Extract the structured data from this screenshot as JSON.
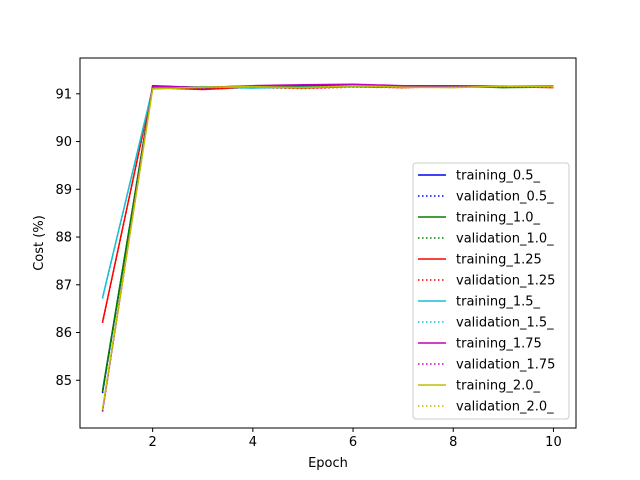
{
  "chart_data": {
    "type": "line",
    "title": "",
    "xlabel": "Epoch",
    "ylabel": "Cost (%)",
    "xlim": [
      0.55,
      10.45
    ],
    "ylim": [
      84.0,
      91.75
    ],
    "x_ticks": [
      2,
      4,
      6,
      8,
      10
    ],
    "y_ticks": [
      85,
      86,
      87,
      88,
      89,
      90,
      91
    ],
    "grid": false,
    "legend_position": "lower-right",
    "x": [
      1,
      2,
      3,
      4,
      5,
      6,
      7,
      8,
      9,
      10
    ],
    "series": [
      {
        "name": "training_0.5_",
        "color": "#0000ff",
        "style": "solid",
        "values": [
          84.75,
          91.17,
          91.13,
          91.15,
          91.17,
          91.18,
          91.16,
          91.15,
          91.14,
          91.15
        ]
      },
      {
        "name": "validation_0.5_",
        "color": "#0000ff",
        "style": "dotted",
        "values": [
          84.73,
          91.14,
          91.12,
          91.16,
          91.15,
          91.17,
          91.15,
          91.16,
          91.15,
          91.14
        ]
      },
      {
        "name": "training_1.0_",
        "color": "#008000",
        "style": "solid",
        "values": [
          84.78,
          91.15,
          91.14,
          91.16,
          91.15,
          91.16,
          91.17,
          91.16,
          91.13,
          91.14
        ]
      },
      {
        "name": "validation_1.0_",
        "color": "#008000",
        "style": "dotted",
        "values": [
          84.76,
          91.14,
          91.13,
          91.15,
          91.16,
          91.15,
          91.16,
          91.15,
          91.14,
          91.15
        ]
      },
      {
        "name": "training_1.25",
        "color": "#ff0000",
        "style": "solid",
        "values": [
          86.22,
          91.13,
          91.09,
          91.14,
          91.12,
          91.15,
          91.13,
          91.16,
          91.15,
          91.13
        ]
      },
      {
        "name": "validation_1.25",
        "color": "#ff0000",
        "style": "dotted",
        "values": [
          86.2,
          91.12,
          91.1,
          91.13,
          91.11,
          91.14,
          91.13,
          91.15,
          91.14,
          91.14
        ]
      },
      {
        "name": "training_1.5_",
        "color": "#17becf",
        "style": "solid",
        "values": [
          86.73,
          91.12,
          91.15,
          91.12,
          91.14,
          91.15,
          91.16,
          91.15,
          91.16,
          91.17
        ]
      },
      {
        "name": "validation_1.5_",
        "color": "#17becf",
        "style": "dotted",
        "values": [
          86.71,
          91.11,
          91.14,
          91.13,
          91.13,
          91.14,
          91.15,
          91.14,
          91.15,
          91.16
        ]
      },
      {
        "name": "training_1.75",
        "color": "#bf00bf",
        "style": "solid",
        "values": [
          84.36,
          91.16,
          91.13,
          91.17,
          91.19,
          91.2,
          91.17,
          91.17,
          91.16,
          91.15
        ]
      },
      {
        "name": "validation_1.75",
        "color": "#bf00bf",
        "style": "dotted",
        "values": [
          84.34,
          91.15,
          91.14,
          91.16,
          91.18,
          91.19,
          91.16,
          91.16,
          91.15,
          91.14
        ]
      },
      {
        "name": "training_2.0_",
        "color": "#bfbf00",
        "style": "solid",
        "values": [
          84.4,
          91.1,
          91.14,
          91.15,
          91.13,
          91.17,
          91.14,
          91.13,
          91.16,
          91.15
        ]
      },
      {
        "name": "validation_2.0_",
        "color": "#bfbf00",
        "style": "dotted",
        "values": [
          84.38,
          91.11,
          91.13,
          91.14,
          91.12,
          91.16,
          91.13,
          91.14,
          91.15,
          91.14
        ]
      }
    ]
  }
}
